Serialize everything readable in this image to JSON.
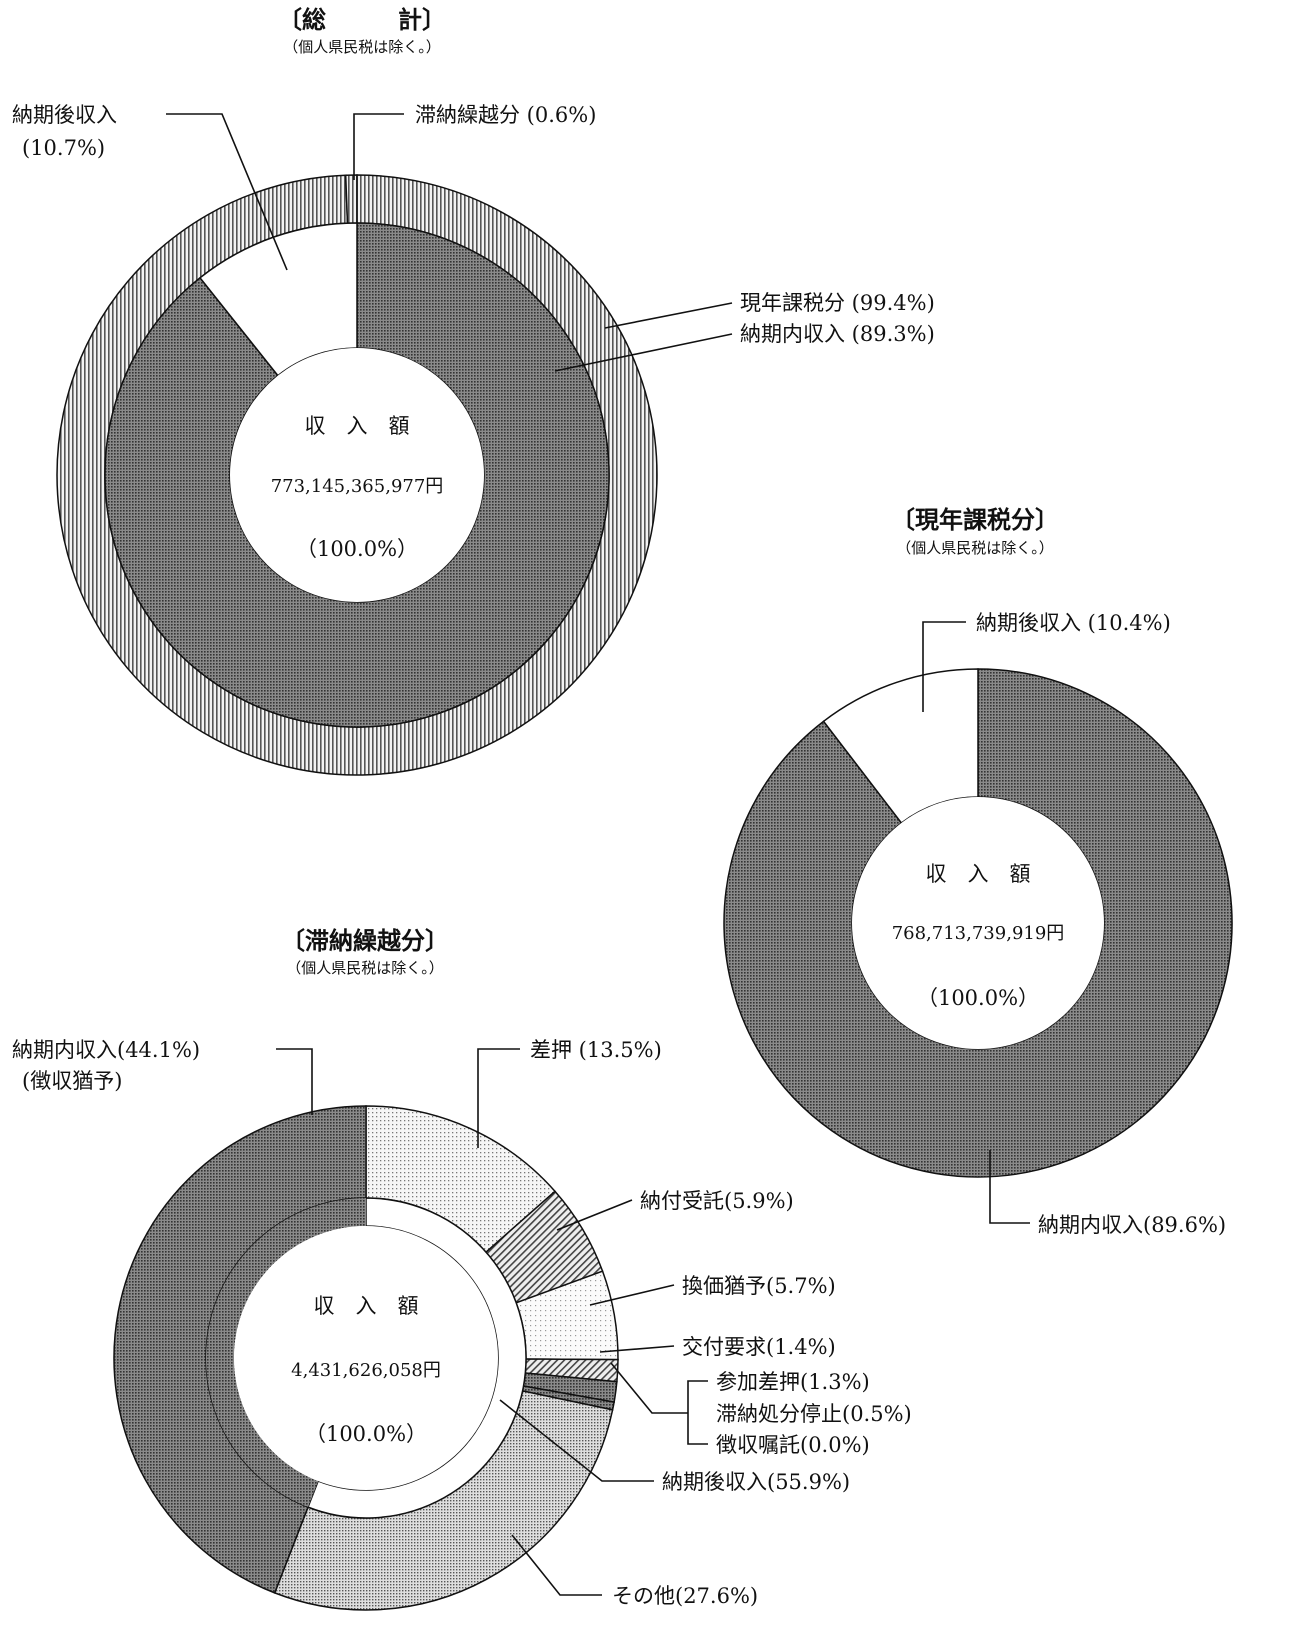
{
  "colors": {
    "dark_dot": "#666666",
    "light_dot": "#cfcfcf",
    "vertical_hatch": "#9a9a9a",
    "diagonal_hatch": "#777777",
    "white": "#ffffff",
    "ink": "#111111"
  },
  "chart_data": [
    {
      "type": "donut",
      "title": "〔総　　　計〕",
      "subtitle": "（個人県民税は除く。）",
      "center": {
        "label": "収　入　額",
        "amount": "773,145,365,977円",
        "percent": "（100.0%）"
      },
      "outer_ring": [
        {
          "name": "現年課税分",
          "label": "現年課税分 (99.4%)",
          "value": 99.4,
          "pattern": "vertical_hatch"
        },
        {
          "name": "滞納繰越分",
          "label": "滞納繰越分 (0.6%)",
          "value": 0.6,
          "pattern": "vertical_hatch"
        }
      ],
      "inner_ring": [
        {
          "name": "納期内収入",
          "label": "納期内収入 (89.3%)",
          "value": 89.3,
          "pattern": "dark_dot"
        },
        {
          "name": "納期後収入",
          "label": [
            "納期後収入",
            "(10.7%)"
          ],
          "value": 10.7,
          "pattern": "white"
        }
      ]
    },
    {
      "type": "donut",
      "title": "〔現年課税分〕",
      "subtitle": "（個人県民税は除く。）",
      "center": {
        "label": "収　入　額",
        "amount": "768,713,739,919円",
        "percent": "（100.0%）"
      },
      "ring": [
        {
          "name": "納期内収入",
          "label": "納期内収入(89.6%)",
          "value": 89.6,
          "pattern": "dark_dot"
        },
        {
          "name": "納期後収入",
          "label": "納期後収入 (10.4%)",
          "value": 10.4,
          "pattern": "white"
        }
      ]
    },
    {
      "type": "donut",
      "title": "〔滞納繰越分〕",
      "subtitle": "（個人県民税は除く。）",
      "center": {
        "label": "収　入　額",
        "amount": "4,431,626,058円",
        "percent": "（100.0%）"
      },
      "inner_ring": [
        {
          "name": "納期内収入",
          "value": 44.1,
          "pattern": "dark_dot"
        },
        {
          "name": "納期後収入",
          "label": "納期後収入(55.9%)",
          "value": 55.9,
          "pattern": "white"
        }
      ],
      "outer_ring": [
        {
          "name": "差押",
          "label": "差押 (13.5%)",
          "value": 13.5,
          "pattern": "light_dot"
        },
        {
          "name": "納付受託",
          "label": "納付受託(5.9%)",
          "value": 5.9,
          "pattern": "diagonal_hatch"
        },
        {
          "name": "換価猶予",
          "label": "換価猶予(5.7%)",
          "value": 5.7,
          "pattern": "light_dot_sparse"
        },
        {
          "name": "交付要求",
          "label": "交付要求(1.4%)",
          "value": 1.4,
          "pattern": "diagonal_hatch"
        },
        {
          "name": "参加差押",
          "label": "参加差押(1.3%)",
          "value": 1.3,
          "pattern": "dark_dot"
        },
        {
          "name": "滞納処分停止",
          "label": "滞納処分停止(0.5%)",
          "value": 0.5,
          "pattern": "dark_dot"
        },
        {
          "name": "徴収嘱託",
          "label": "徴収嘱託(0.0%)",
          "value": 0.0,
          "pattern": "dark_dot"
        },
        {
          "name": "その他",
          "label": "その他(27.6%)",
          "value": 27.6,
          "pattern": "medium_dot"
        },
        {
          "name": "納期内収入",
          "label": [
            "納期内収入(44.1%)",
            "(徴収猶予)"
          ],
          "value": 44.1,
          "pattern": "dark_dot"
        }
      ]
    }
  ]
}
